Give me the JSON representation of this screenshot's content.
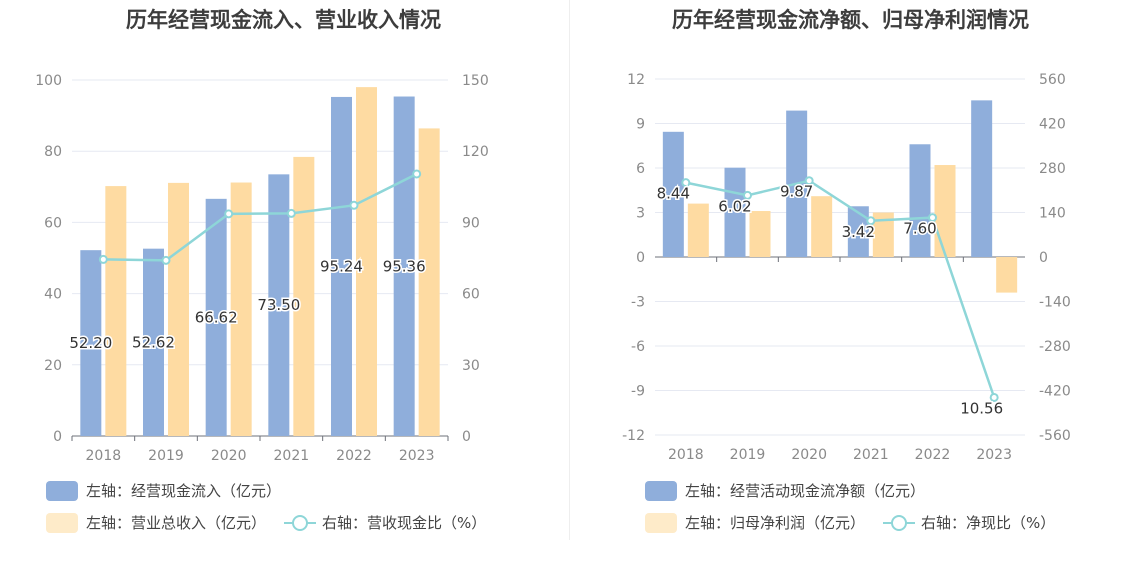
{
  "colors": {
    "blue": "#8faedb",
    "orange": "#fedba2",
    "line": "#8ed6d8",
    "grid": "#e6e9f2",
    "axis": "#8a8a8a"
  },
  "chart_data": [
    {
      "type": "bar",
      "title": "历年经营现金流入、营业收入情况",
      "categories": [
        "2018",
        "2019",
        "2020",
        "2021",
        "2022",
        "2023"
      ],
      "left_axis": {
        "ticks": [
          "0",
          "20",
          "40",
          "60",
          "80",
          "100"
        ],
        "ylim": [
          0,
          100
        ]
      },
      "right_axis": {
        "ticks": [
          "0",
          "30",
          "60",
          "90",
          "120",
          "150"
        ],
        "ylim": [
          0,
          150
        ]
      },
      "series": [
        {
          "name": "左轴：经营现金流入（亿元）",
          "axis": "left",
          "kind": "bar",
          "values": [
            52.2,
            52.62,
            66.62,
            73.5,
            95.24,
            95.36
          ],
          "labels": [
            "52.20",
            "52.62",
            "66.62",
            "73.50",
            "95.24",
            "95.36"
          ]
        },
        {
          "name": "左轴：营业总收入（亿元）",
          "axis": "left",
          "kind": "bar",
          "values": [
            70.2,
            71.1,
            71.2,
            78.4,
            98.0,
            86.4
          ]
        },
        {
          "name": "右轴：营收现金比（%）",
          "axis": "right",
          "kind": "line",
          "values": [
            74.4,
            74.0,
            93.6,
            93.8,
            97.2,
            110.4
          ]
        }
      ]
    },
    {
      "type": "bar",
      "title": "历年经营现金流净额、归母净利润情况",
      "categories": [
        "2018",
        "2019",
        "2020",
        "2021",
        "2022",
        "2023"
      ],
      "left_axis": {
        "ticks": [
          "-12",
          "-9",
          "-6",
          "-3",
          "0",
          "3",
          "6",
          "9",
          "12"
        ],
        "ylim": [
          -12,
          12
        ]
      },
      "right_axis": {
        "ticks": [
          "-560",
          "-420",
          "-280",
          "-140",
          "0",
          "140",
          "280",
          "420",
          "560"
        ],
        "ylim": [
          -560,
          560
        ]
      },
      "series": [
        {
          "name": "左轴：经营活动现金流净额（亿元）",
          "axis": "left",
          "kind": "bar",
          "values": [
            8.44,
            6.02,
            9.87,
            3.42,
            7.6,
            10.56
          ],
          "labels": [
            "8.44",
            "6.02",
            "9.87",
            "3.42",
            "7.60",
            "10.56"
          ]
        },
        {
          "name": "左轴：归母净利润（亿元）",
          "axis": "left",
          "kind": "bar",
          "values": [
            3.6,
            3.1,
            4.1,
            3.0,
            6.2,
            -2.4
          ]
        },
        {
          "name": "右轴：净现比（%）",
          "axis": "right",
          "kind": "line",
          "values": [
            234,
            194,
            240,
            114,
            124,
            -442
          ]
        }
      ]
    }
  ]
}
